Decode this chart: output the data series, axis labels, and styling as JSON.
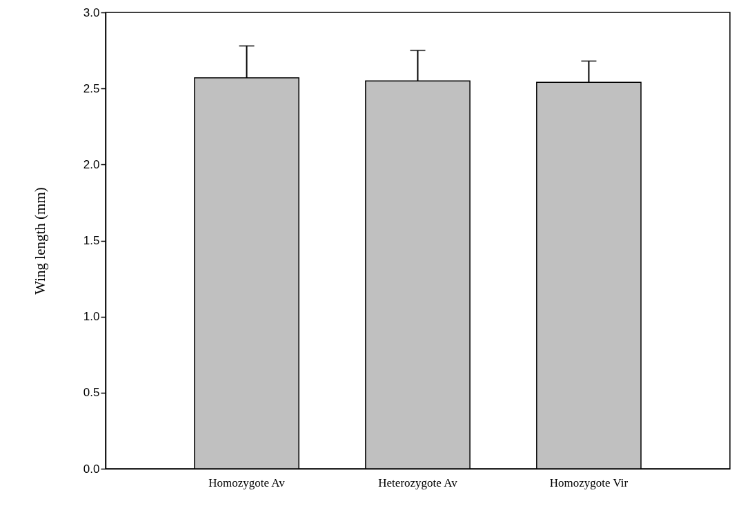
{
  "chart_data": {
    "type": "bar",
    "ylabel": "Wing length (mm)",
    "categories": [
      "Homozygote Av",
      "Heterozygote Av",
      "Homozygote Vir"
    ],
    "values": [
      2.57,
      2.55,
      2.54
    ],
    "errors": [
      [
        2.57,
        2.78
      ],
      [
        2.55,
        2.75
      ],
      [
        2.54,
        2.68
      ]
    ],
    "color": "#c0c0c0",
    "ylim": [
      0,
      3
    ],
    "yticks": [
      {
        "value": 0,
        "label": "0.0"
      },
      {
        "value": 0.5,
        "label": "0.5"
      },
      {
        "value": 1,
        "label": "1.0"
      },
      {
        "value": 1.5,
        "label": "1.5"
      },
      {
        "value": 2,
        "label": "2.0"
      },
      {
        "value": 2.5,
        "label": "2.5"
      },
      {
        "value": 3,
        "label": "3.0"
      }
    ],
    "grid": false
  }
}
